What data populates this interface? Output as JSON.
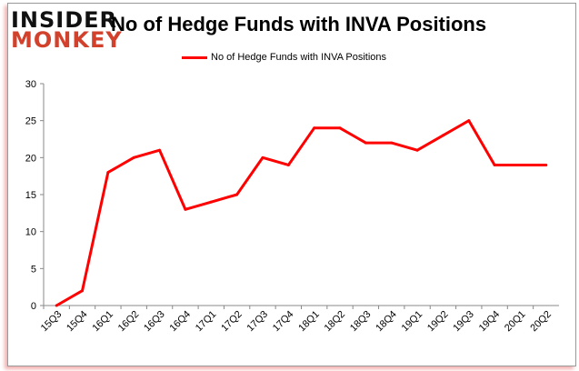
{
  "chart_data": {
    "type": "line",
    "title": "No of Hedge Funds with INVA Positions",
    "categories": [
      "15Q3",
      "15Q4",
      "16Q1",
      "16Q2",
      "16Q3",
      "16Q4",
      "17Q1",
      "17Q2",
      "17Q3",
      "17Q4",
      "18Q1",
      "18Q2",
      "18Q3",
      "18Q4",
      "19Q1",
      "19Q2",
      "19Q3",
      "19Q4",
      "20Q1",
      "20Q2"
    ],
    "series": [
      {
        "name": "No of Hedge Funds with INVA Positions",
        "color": "#ff0000",
        "values": [
          0,
          2,
          18,
          20,
          21,
          13,
          14,
          15,
          20,
          19,
          24,
          24,
          22,
          22,
          21,
          23,
          25,
          19,
          19,
          19
        ]
      }
    ],
    "ylim": [
      0,
      30
    ],
    "yticks": [
      0,
      5,
      10,
      15,
      20,
      25,
      30
    ],
    "xlabel": "",
    "ylabel": "",
    "grid": false,
    "legend": "top-center"
  },
  "logo": {
    "line1": "INSIDER",
    "line2": "MONKEY"
  }
}
